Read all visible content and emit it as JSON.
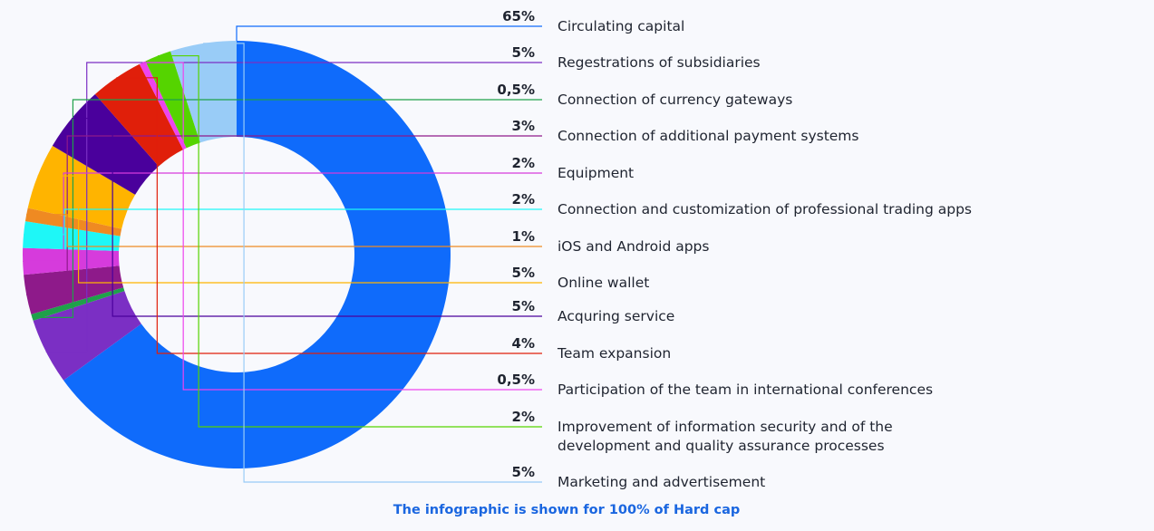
{
  "chart_data": {
    "type": "pie",
    "donut": true,
    "slices": [
      {
        "label": "Circulating capital",
        "value": 65,
        "display": "65%",
        "color": "#0f6bfb"
      },
      {
        "label": "Regestrations of subsidiaries",
        "value": 5,
        "display": "5%",
        "color": "#7b2fc4"
      },
      {
        "label": "Connection of currency gateways",
        "value": 0.5,
        "display": "0,5%",
        "color": "#1fa14a"
      },
      {
        "label": "Connection of additional payment systems",
        "value": 3,
        "display": "3%",
        "color": "#8e1a8a"
      },
      {
        "label": "Equipment",
        "value": 2,
        "display": "2%",
        "color": "#d63bdc"
      },
      {
        "label": "Connection and customization of professional trading apps",
        "value": 2,
        "display": "2%",
        "color": "#1ef7f7"
      },
      {
        "label": "iOS and Android apps",
        "value": 1,
        "display": "1%",
        "color": "#ef8a22"
      },
      {
        "label": "Online wallet",
        "value": 5,
        "display": "5%",
        "color": "#ffb400"
      },
      {
        "label": "Acquring service",
        "value": 5,
        "display": "5%",
        "color": "#4a009c"
      },
      {
        "label": "Team expansion",
        "value": 4,
        "display": "4%",
        "color": "#e01f0a"
      },
      {
        "label": "Participation of the team in international conferences",
        "value": 0.5,
        "display": "0,5%",
        "color": "#ee44ee"
      },
      {
        "label": [
          "Improvement of information security and of the",
          "development and quality assurance processes"
        ],
        "value": 2,
        "display": "2%",
        "color": "#55d400"
      },
      {
        "label": "Marketing and advertisement",
        "value": 5,
        "display": "5%",
        "color": "#99ccf7"
      }
    ],
    "footnote": "The infographic is shown for 100% of Hard cap"
  }
}
